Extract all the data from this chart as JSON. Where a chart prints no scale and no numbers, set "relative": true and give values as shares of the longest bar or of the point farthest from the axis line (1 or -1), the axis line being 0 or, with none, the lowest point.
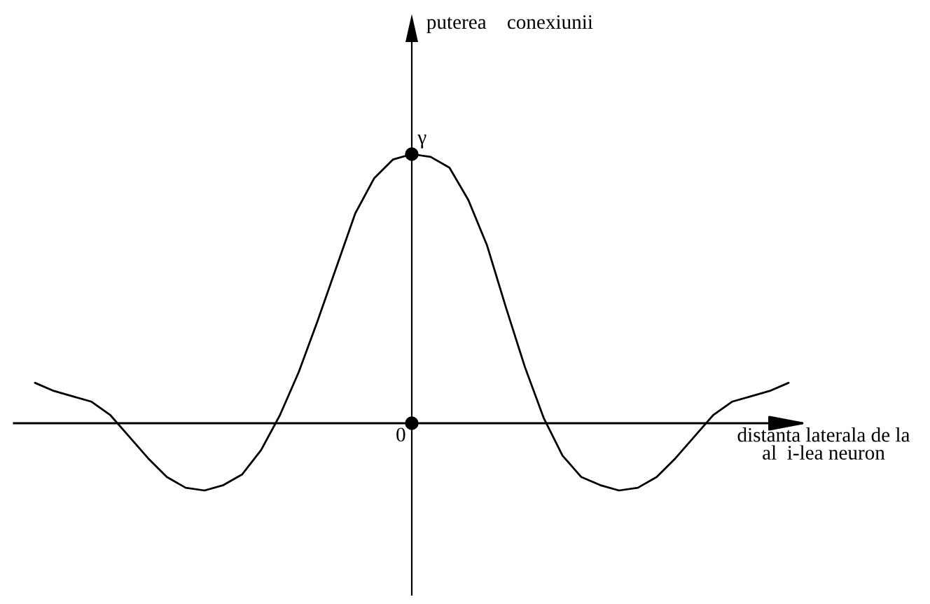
{
  "chart_data": {
    "type": "line",
    "relative": true,
    "xlabel": "distanta laterala de la\nal  i-lea neuron",
    "categories": [
      null,
      null,
      null,
      null,
      null,
      null,
      null,
      null,
      null,
      null,
      null,
      null,
      null,
      null,
      null,
      null,
      null,
      null,
      null,
      null,
      null,
      null,
      null,
      null,
      null,
      null,
      null,
      null,
      null,
      null,
      null,
      null,
      null,
      null,
      null,
      null,
      null,
      null,
      null,
      null,
      null
    ],
    "series": [
      {
        "color": "#000000",
        "values": [
          0.15,
          0.12,
          0.1,
          0.08,
          0.03,
          -0.05,
          -0.13,
          -0.2,
          -0.24,
          -0.25,
          -0.23,
          -0.19,
          -0.1,
          0.03,
          0.19,
          0.38,
          0.58,
          0.78,
          0.91,
          0.98,
          1.0,
          0.99,
          0.95,
          0.83,
          0.66,
          0.43,
          0.21,
          0.02,
          -0.12,
          -0.2,
          -0.23,
          -0.25,
          -0.24,
          -0.2,
          -0.13,
          -0.05,
          0.03,
          0.08,
          0.1,
          0.12,
          0.15
        ]
      },
      {
        "color": "#000000",
        "marker": "circle",
        "values": [
          null,
          null,
          null,
          null,
          null,
          null,
          null,
          null,
          null,
          null,
          null,
          null,
          null,
          null,
          null,
          null,
          null,
          null,
          null,
          null,
          0,
          null,
          null,
          null,
          null,
          null,
          null,
          null,
          null,
          null,
          null,
          null,
          null,
          null,
          null,
          null,
          null,
          null,
          null,
          null,
          null
        ]
      }
    ],
    "annotations": [
      "puterea    conexiunii",
      {
        "text": "γ",
        "y": 1
      },
      "0"
    ]
  }
}
